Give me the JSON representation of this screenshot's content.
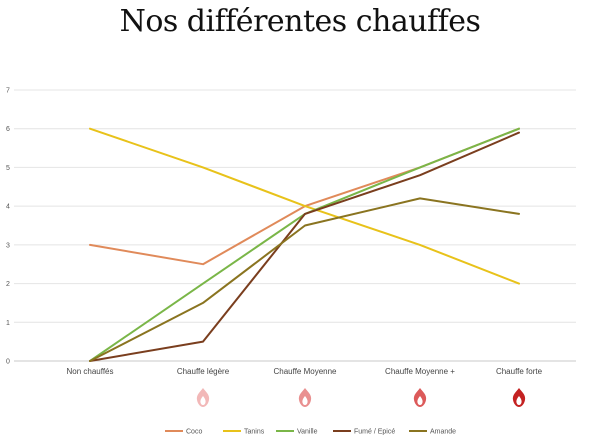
{
  "page_title": "Nos différentes chauffes",
  "chart_data": {
    "type": "line",
    "title": "",
    "xlabel": "",
    "ylabel": "",
    "categories": [
      "Non chauffés",
      "Chauffe légère",
      "Chauffe Moyenne",
      "Chauffe Moyenne +",
      "Chauffe forte"
    ],
    "ylim": [
      0,
      7
    ],
    "yticks": [
      0,
      1,
      2,
      3,
      4,
      5,
      6,
      7
    ],
    "grid": true,
    "legend_position": "bottom",
    "series": [
      {
        "name": "Coco",
        "color": "#e08a5a",
        "values": [
          3,
          2.5,
          4,
          5,
          6
        ]
      },
      {
        "name": "Tanins",
        "color": "#e8c21a",
        "values": [
          6,
          5,
          4,
          3,
          2
        ]
      },
      {
        "name": "Vanille",
        "color": "#7ab648",
        "values": [
          0,
          2,
          3.8,
          5,
          6
        ]
      },
      {
        "name": "Fumé / Epicé",
        "color": "#7a3e1e",
        "values": [
          0,
          0.5,
          3.8,
          4.8,
          5.9
        ]
      },
      {
        "name": "Amande",
        "color": "#8a7420",
        "values": [
          0,
          1.5,
          3.5,
          4.2,
          3.8
        ]
      }
    ]
  },
  "flame_icons": [
    {
      "icon": "flame-icon",
      "intensity": "light",
      "color": "#f2b8b8"
    },
    {
      "icon": "flame-icon",
      "intensity": "medium",
      "color": "#e99090"
    },
    {
      "icon": "flame-icon",
      "intensity": "medium-plus",
      "color": "#dc5a5a"
    },
    {
      "icon": "flame-icon",
      "intensity": "strong",
      "color": "#c42222"
    }
  ]
}
